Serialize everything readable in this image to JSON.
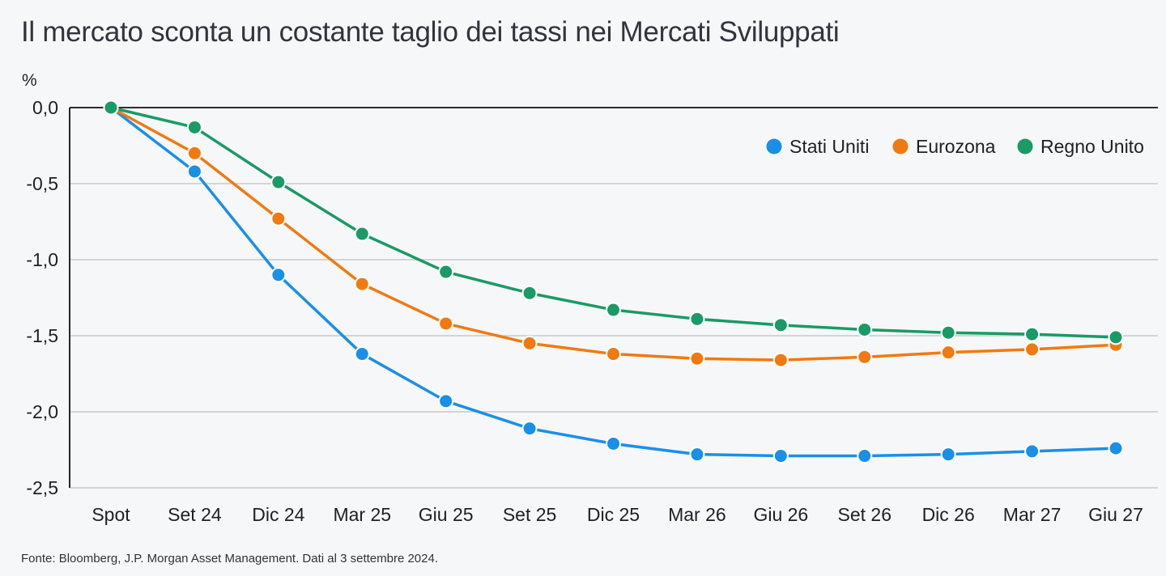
{
  "title": "Il mercato sconta un costante taglio dei tassi nei Mercati Sviluppati",
  "source": "Fonte: Bloomberg, J.P. Morgan Asset Management. Dati al 3 settembre 2024.",
  "chart_data": {
    "type": "line",
    "ylabel": "%",
    "ylim": [
      -2.5,
      0.0
    ],
    "yticks": [
      "0,0",
      "-0,5",
      "-1,0",
      "-1,5",
      "-2,0",
      "-2,5"
    ],
    "ytick_values": [
      0.0,
      -0.5,
      -1.0,
      -1.5,
      -2.0,
      -2.5
    ],
    "categories": [
      "Spot",
      "Set 24",
      "Dic 24",
      "Mar 25",
      "Giu 25",
      "Set 25",
      "Dic 25",
      "Mar 26",
      "Giu 26",
      "Set 26",
      "Dic 26",
      "Mar 27",
      "Giu 27"
    ],
    "grid": true,
    "legend_position": "top-right",
    "series": [
      {
        "name": "Stati Uniti",
        "color": "#1a8fe8",
        "values": [
          0.0,
          -0.42,
          -1.1,
          -1.62,
          -1.93,
          -2.11,
          -2.21,
          -2.28,
          -2.29,
          -2.29,
          -2.28,
          -2.26,
          -2.24
        ]
      },
      {
        "name": "Eurozona",
        "color": "#f07a10",
        "values": [
          0.0,
          -0.3,
          -0.73,
          -1.16,
          -1.42,
          -1.55,
          -1.62,
          -1.65,
          -1.66,
          -1.64,
          -1.61,
          -1.59,
          -1.56
        ]
      },
      {
        "name": "Regno Unito",
        "color": "#1a9a66",
        "values": [
          0.0,
          -0.13,
          -0.49,
          -0.83,
          -1.08,
          -1.22,
          -1.33,
          -1.39,
          -1.43,
          -1.46,
          -1.48,
          -1.49,
          -1.51
        ]
      }
    ]
  }
}
